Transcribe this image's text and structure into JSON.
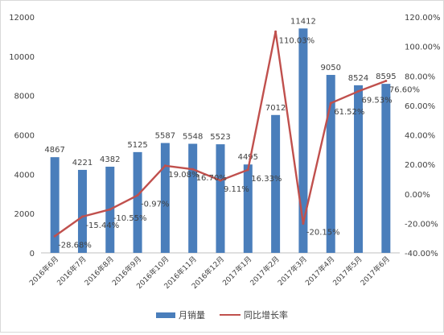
{
  "chart_data": {
    "type": "bar",
    "categories": [
      "2016年6月",
      "2016年7月",
      "2016年8月",
      "2016年9月",
      "2016年10月",
      "2016年11月",
      "2016年12月",
      "2017年1月",
      "2017年2月",
      "2017年3月",
      "2017年4月",
      "2017年5月",
      "2017年6月"
    ],
    "series": [
      {
        "name": "月销量",
        "type": "bar",
        "axis": "left",
        "color": "#4a7ebb",
        "values": [
          4867,
          4221,
          4382,
          5125,
          5587,
          5548,
          5523,
          4495,
          7012,
          11412,
          9050,
          8524,
          8595
        ]
      },
      {
        "name": "同比增长率",
        "type": "line",
        "axis": "right",
        "color": "#c0504d",
        "values": [
          -28.68,
          -15.44,
          -10.55,
          -0.97,
          19.08,
          16.7,
          9.11,
          16.33,
          110.03,
          -20.15,
          61.52,
          69.53,
          76.6
        ],
        "labels": [
          "-28.68%",
          "-15.44%",
          "-10.55%",
          "-0.97%",
          "19.08%",
          "16.70%",
          "9.11%",
          "16.33%",
          "110.03%",
          "-20.15%",
          "61.52%",
          "69.53%",
          "76.60%"
        ]
      }
    ],
    "y_left": {
      "min": 0,
      "max": 12000,
      "ticks": [
        "0",
        "2000",
        "4000",
        "6000",
        "8000",
        "10000",
        "12000"
      ]
    },
    "y_right": {
      "min": -40,
      "max": 120,
      "ticks": [
        "-40.00%",
        "-20.00%",
        "0.00%",
        "20.00%",
        "40.00%",
        "60.00%",
        "80.00%",
        "100.00%",
        "120.00%"
      ]
    },
    "grid": false,
    "legend_position": "bottom"
  },
  "legend": {
    "bar_label": "月销量",
    "line_label": "同比增长率"
  }
}
